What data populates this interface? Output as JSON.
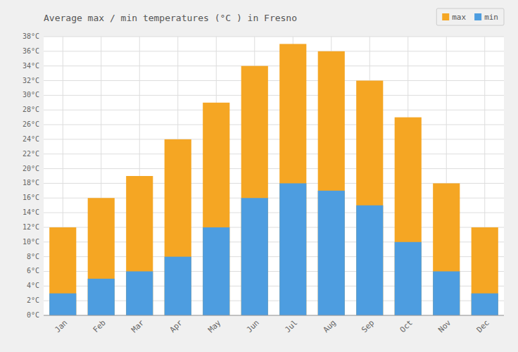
{
  "chart_data": {
    "type": "bar",
    "title": "Average max / min temperatures (°C ) in Fresno",
    "categories": [
      "Jan",
      "Feb",
      "Mar",
      "Apr",
      "May",
      "Jun",
      "Jul",
      "Aug",
      "Sep",
      "Oct",
      "Nov",
      "Dec"
    ],
    "series": [
      {
        "name": "max",
        "color": "#f5a623",
        "values": [
          12,
          16,
          19,
          24,
          29,
          34,
          37,
          36,
          32,
          27,
          18,
          12
        ]
      },
      {
        "name": "min",
        "color": "#4d9de0",
        "values": [
          3,
          5,
          6,
          8,
          12,
          16,
          18,
          17,
          15,
          10,
          6,
          3
        ]
      }
    ],
    "stacked": false,
    "ylim": [
      0,
      38
    ],
    "yticks": [
      {
        "value": 0,
        "label": "0°C"
      },
      {
        "value": 2,
        "label": "2°C"
      },
      {
        "value": 4,
        "label": "4°C"
      },
      {
        "value": 6,
        "label": "6°C"
      },
      {
        "value": 8,
        "label": "8°C"
      },
      {
        "value": 10,
        "label": "10°C"
      },
      {
        "value": 12,
        "label": "12°C"
      },
      {
        "value": 14,
        "label": "14°C"
      },
      {
        "value": 16,
        "label": "16°C"
      },
      {
        "value": 18,
        "label": "18°C"
      },
      {
        "value": 20,
        "label": "20°C"
      },
      {
        "value": 22,
        "label": "22°C"
      },
      {
        "value": 24,
        "label": "24°C"
      },
      {
        "value": 26,
        "label": "26°C"
      },
      {
        "value": 28,
        "label": "28°C"
      },
      {
        "value": 30,
        "label": "30°C"
      },
      {
        "value": 32,
        "label": "32°C"
      },
      {
        "value": 34,
        "label": "34°C"
      },
      {
        "value": 36,
        "label": "36°C"
      },
      {
        "value": 38,
        "label": "38°C"
      }
    ],
    "grid": true,
    "legend": "upper right"
  }
}
